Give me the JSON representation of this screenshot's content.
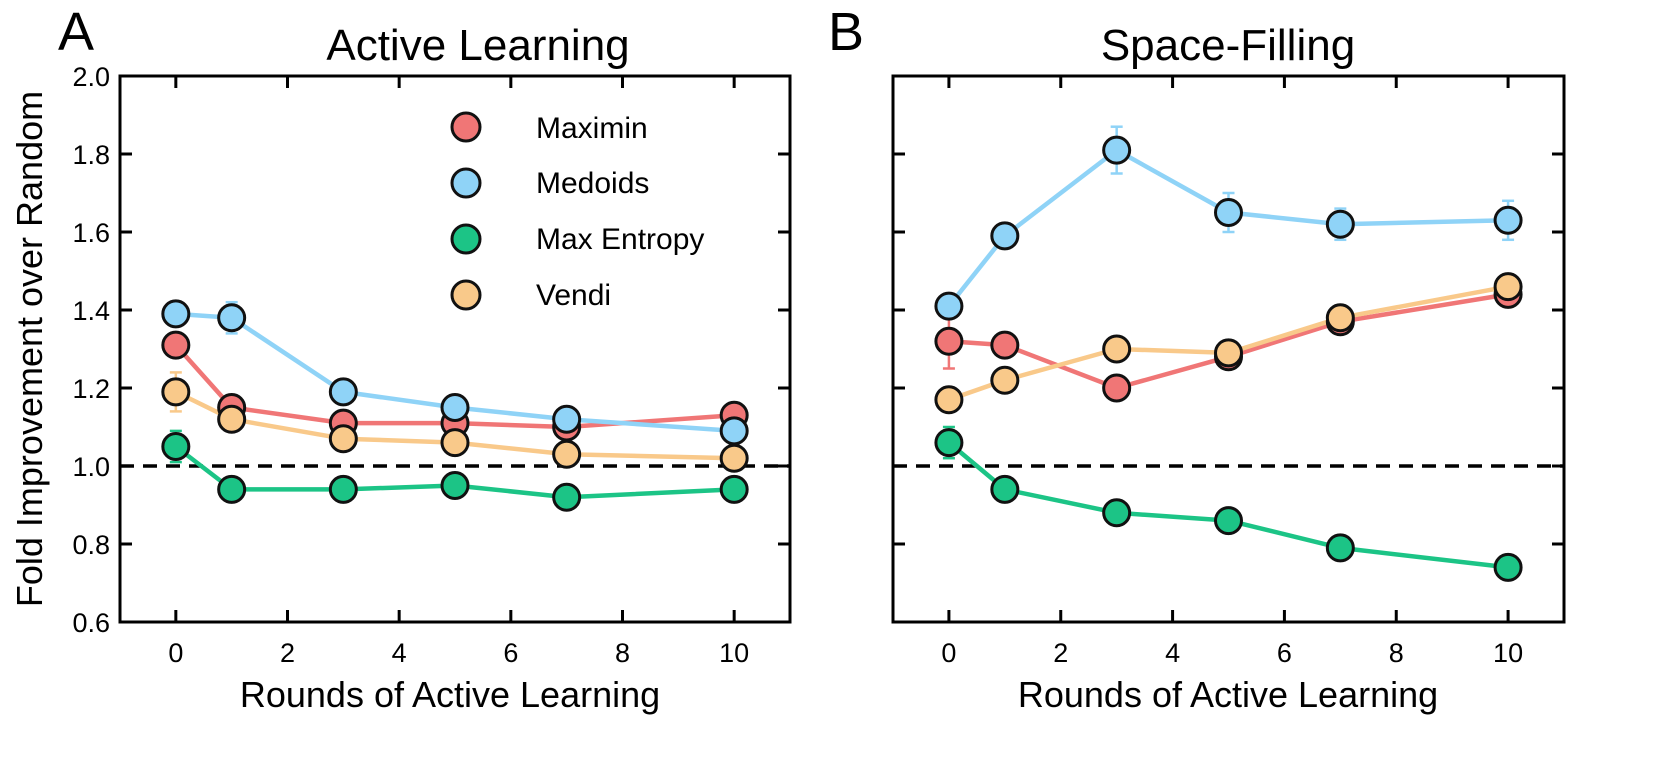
{
  "colors": {
    "Maximin": "#f07676",
    "Medoids": "#8fd3f7",
    "Max Entropy": "#1cc486",
    "Vendi": "#f9c98a",
    "marker_edge": "#111111"
  },
  "ylabel_shared": "Fold Improvement over Random",
  "chart_data": [
    {
      "type": "line",
      "panel_label": "A",
      "title": "Active Learning",
      "xlabel": "Rounds of Active Learning",
      "ylabel": "Fold Improvement over Random",
      "xlim": [
        -1,
        11
      ],
      "ylim": [
        0.6,
        2.0
      ],
      "xticks": [
        0,
        2,
        4,
        6,
        8,
        10
      ],
      "yticks": [
        0.6,
        0.8,
        1.0,
        1.2,
        1.4,
        1.6,
        1.8,
        2.0
      ],
      "ytick_labels": [
        "0.6",
        "0.8",
        "1.0",
        "1.2",
        "1.4",
        "1.6",
        "1.8",
        "2.0"
      ],
      "reference_line": 1.0,
      "legend": {
        "position": "top-right",
        "entries": [
          "Maximin",
          "Medoids",
          "Max Entropy",
          "Vendi"
        ]
      },
      "x": [
        0,
        1,
        3,
        5,
        7,
        10
      ],
      "series": [
        {
          "name": "Maximin",
          "values": [
            1.31,
            1.15,
            1.11,
            1.11,
            1.1,
            1.13
          ],
          "errors": [
            0.02,
            0.02,
            0.01,
            0.01,
            0.01,
            0.01
          ]
        },
        {
          "name": "Medoids",
          "values": [
            1.39,
            1.38,
            1.19,
            1.15,
            1.12,
            1.09
          ],
          "errors": [
            0.03,
            0.04,
            0.01,
            0.01,
            0.01,
            0.01
          ]
        },
        {
          "name": "Max Entropy",
          "values": [
            1.05,
            0.94,
            0.94,
            0.95,
            0.92,
            0.94
          ],
          "errors": [
            0.04,
            0.01,
            0.01,
            0.01,
            0.01,
            0.01
          ]
        },
        {
          "name": "Vendi",
          "values": [
            1.19,
            1.12,
            1.07,
            1.06,
            1.03,
            1.02
          ],
          "errors": [
            0.05,
            0.01,
            0.01,
            0.01,
            0.01,
            0.01
          ]
        }
      ]
    },
    {
      "type": "line",
      "panel_label": "B",
      "title": "Space-Filling",
      "xlabel": "Rounds of Active Learning",
      "xlim": [
        -1,
        11
      ],
      "ylim": [
        0.6,
        2.0
      ],
      "xticks": [
        0,
        2,
        4,
        6,
        8,
        10
      ],
      "yticks": [
        0.6,
        0.8,
        1.0,
        1.2,
        1.4,
        1.6,
        1.8,
        2.0
      ],
      "reference_line": 1.0,
      "x": [
        0,
        1,
        3,
        5,
        7,
        10
      ],
      "series": [
        {
          "name": "Maximin",
          "values": [
            1.32,
            1.31,
            1.2,
            1.28,
            1.37,
            1.44
          ],
          "errors": [
            0.07,
            0.01,
            0.01,
            0.01,
            0.01,
            0.01
          ]
        },
        {
          "name": "Medoids",
          "values": [
            1.41,
            1.59,
            1.81,
            1.65,
            1.62,
            1.63
          ],
          "errors": [
            0.02,
            0.03,
            0.06,
            0.05,
            0.04,
            0.05
          ]
        },
        {
          "name": "Max Entropy",
          "values": [
            1.06,
            0.94,
            0.88,
            0.86,
            0.79,
            0.74
          ],
          "errors": [
            0.04,
            0.01,
            0.01,
            0.01,
            0.01,
            0.01
          ]
        },
        {
          "name": "Vendi",
          "values": [
            1.17,
            1.22,
            1.3,
            1.29,
            1.38,
            1.46
          ],
          "errors": [
            0.02,
            0.01,
            0.01,
            0.01,
            0.01,
            0.01
          ]
        }
      ]
    }
  ]
}
